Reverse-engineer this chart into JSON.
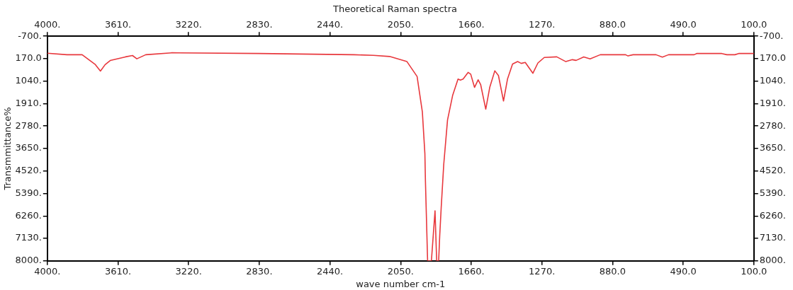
{
  "chart_data": {
    "type": "line",
    "title": "Theoretical Raman spectra",
    "xlabel": "wave number cm-1",
    "ylabel": "Transmmittance%",
    "color": "#e8383d",
    "x": [
      4000,
      3892,
      3808,
      3737,
      3707,
      3681,
      3653,
      3569,
      3530,
      3506,
      3457,
      3316,
      2830,
      2307,
      2200,
      2111,
      2015,
      1959,
      1930,
      1916,
      1913,
      1901,
      1880,
      1860,
      1851,
      1840,
      1834,
      1826,
      1812,
      1791,
      1763,
      1733,
      1720,
      1705,
      1677,
      1663,
      1642,
      1622,
      1608,
      1580,
      1558,
      1530,
      1510,
      1482,
      1460,
      1432,
      1404,
      1384,
      1362,
      1320,
      1292,
      1257,
      1188,
      1138,
      1102,
      1081,
      1039,
      1004,
      948,
      808,
      795,
      767,
      640,
      605,
      571,
      430,
      416,
      277,
      249,
      205,
      184,
      100
    ],
    "values": [
      -40,
      17,
      17,
      386,
      650,
      400,
      240,
      100,
      48,
      175,
      17,
      -57,
      -30,
      17,
      40,
      85,
      283,
      860,
      2230,
      3852,
      4905,
      8000,
      8000,
      6064,
      8000,
      8000,
      7010,
      5946,
      4273,
      2545,
      1598,
      961,
      1000,
      961,
      700,
      770,
      1282,
      987,
      1177,
      2124,
      1282,
      640,
      821,
      1808,
      961,
      377,
      283,
      353,
      317,
      734,
      336,
      123,
      100,
      283,
      208,
      236,
      100,
      175,
      17,
      17,
      64,
      17,
      17,
      111,
      17,
      17,
      -30,
      -30,
      17,
      17,
      -30,
      -30
    ],
    "xlim": [
      4000,
      100
    ],
    "xticks": [
      {
        "value": 4000,
        "label": "4000."
      },
      {
        "value": 3610,
        "label": "3610."
      },
      {
        "value": 3220,
        "label": "3220."
      },
      {
        "value": 2830,
        "label": "2830."
      },
      {
        "value": 2440,
        "label": "2440."
      },
      {
        "value": 2050,
        "label": "2050."
      },
      {
        "value": 1660,
        "label": "1660."
      },
      {
        "value": 1270,
        "label": "1270."
      },
      {
        "value": 880,
        "label": "880.0"
      },
      {
        "value": 490,
        "label": "490.0"
      },
      {
        "value": 100,
        "label": "100.0"
      }
    ],
    "x2lim": [
      4000,
      100
    ],
    "x2ticks": [
      {
        "value": 4000,
        "label": "4000."
      },
      {
        "value": 3610,
        "label": "3610."
      },
      {
        "value": 3220,
        "label": "3220."
      },
      {
        "value": 2830,
        "label": "2830."
      },
      {
        "value": 2440,
        "label": "2440."
      },
      {
        "value": 2050,
        "label": "2050."
      },
      {
        "value": 1660,
        "label": "1660."
      },
      {
        "value": 1270,
        "label": "1270."
      },
      {
        "value": 880,
        "label": "880.0"
      },
      {
        "value": 490,
        "label": "490.0"
      },
      {
        "value": 100,
        "label": "100.0"
      }
    ],
    "ylim": [
      8000,
      -700
    ],
    "yticks": [
      {
        "value": -700,
        "label": "-700."
      },
      {
        "value": 170,
        "label": "170.0"
      },
      {
        "value": 1040,
        "label": "1040."
      },
      {
        "value": 1910,
        "label": "1910."
      },
      {
        "value": 2780,
        "label": "2780."
      },
      {
        "value": 3650,
        "label": "3650."
      },
      {
        "value": 4520,
        "label": "4520."
      },
      {
        "value": 5390,
        "label": "5390."
      },
      {
        "value": 6260,
        "label": "6260."
      },
      {
        "value": 7130,
        "label": "7130."
      },
      {
        "value": 8000,
        "label": "8000."
      }
    ],
    "y2lim": [
      8000,
      -700
    ],
    "y2ticks": [
      {
        "value": -700,
        "label": "-700."
      },
      {
        "value": 170,
        "label": "170.0"
      },
      {
        "value": 1040,
        "label": "1040."
      },
      {
        "value": 1910,
        "label": "1910."
      },
      {
        "value": 2780,
        "label": "2780."
      },
      {
        "value": 3650,
        "label": "3650."
      },
      {
        "value": 4520,
        "label": "4520."
      },
      {
        "value": 5390,
        "label": "5390."
      },
      {
        "value": 6260,
        "label": "6260."
      },
      {
        "value": 7130,
        "label": "7130."
      },
      {
        "value": 8000,
        "label": "8000."
      }
    ]
  }
}
